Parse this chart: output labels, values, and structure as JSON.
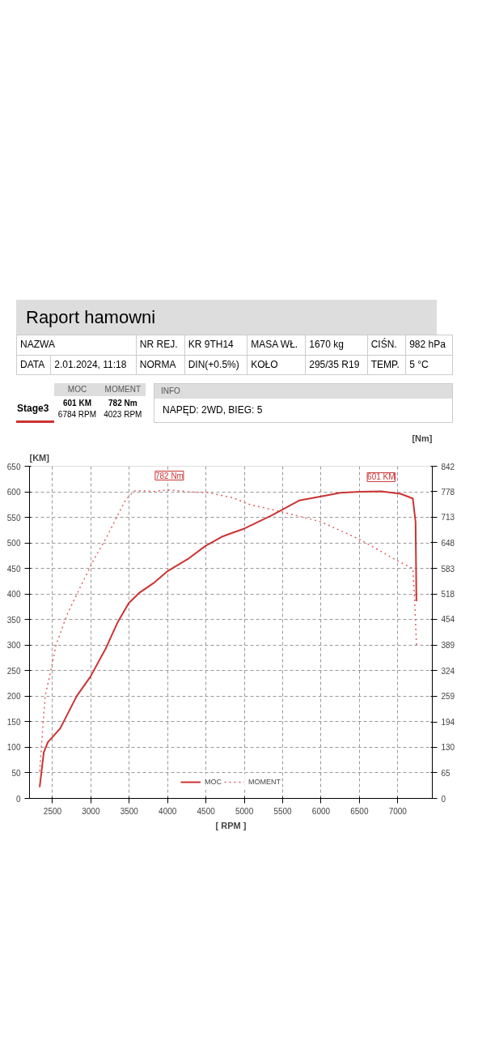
{
  "chart_data": {
    "type": "line",
    "title": "Raport hamowni",
    "xlabel": "[ RPM ]",
    "ylabel": "[KM]",
    "y2label": "[Nm]",
    "xlim": [
      2200,
      7450
    ],
    "xticks": [
      2500,
      3000,
      3500,
      4000,
      4500,
      5000,
      5500,
      6000,
      6500,
      7000
    ],
    "ylim": [
      0,
      650
    ],
    "yticks": [
      0,
      50,
      100,
      150,
      200,
      250,
      300,
      350,
      400,
      450,
      500,
      550,
      600,
      650
    ],
    "y2lim": [
      0,
      842
    ],
    "y2ticks": [
      0,
      65,
      130,
      194,
      259,
      324,
      389,
      454,
      518,
      583,
      648,
      713,
      778,
      842
    ],
    "grid": true,
    "legend": "bottom",
    "marker": "none",
    "series": [
      {
        "name": "MOC",
        "color": "#cc3333",
        "line_style": "solid",
        "x": [
          2332,
          2386,
          2439,
          2600,
          2814,
          2993,
          3189,
          3350,
          3493,
          3636,
          3814,
          3993,
          4279,
          4493,
          4707,
          4850,
          5000,
          5357,
          5714,
          6071,
          6250,
          6500,
          6784,
          7036,
          7196,
          7232,
          7243
        ],
        "values": [
          22,
          90,
          110,
          137,
          200,
          238,
          292,
          345,
          382,
          403,
          421,
          444,
          470,
          494,
          512,
          520,
          528,
          554,
          583,
          593,
          598,
          600,
          601,
          596,
          587,
          541,
          386
        ]
      },
      {
        "name": "MOMENT",
        "color": "#e06060",
        "line_style": "dotted",
        "axis": "y2",
        "x": [
          2332,
          2368,
          2404,
          2475,
          2546,
          2689,
          2850,
          3029,
          3207,
          3350,
          3457,
          3564,
          3671,
          3814,
          4023,
          4279,
          4529,
          4850,
          5071,
          5500,
          6000,
          6500,
          7000,
          7196,
          7221,
          7243
        ],
        "values": [
          68,
          164,
          260,
          321,
          389,
          466,
          531,
          602,
          663,
          718,
          758,
          779,
          780,
          778,
          782,
          777,
          775,
          762,
          745,
          726,
          701,
          657,
          602,
          583,
          500,
          389
        ]
      }
    ],
    "annotations": [
      {
        "text": "782 Nm",
        "x": 4023,
        "y": 604
      },
      {
        "text": "601 KM",
        "x": 6784,
        "y": 601
      },
      "NAZWA",
      "NR REJ.",
      "KR 9TH14",
      "MASA WŁ.",
      "1670 kg",
      "CIŚN.",
      "982 hPa",
      "DATA",
      "2.01.2024, 11:18",
      "NORMA",
      "DIN(+0.5%)",
      "KOŁO",
      "295/35 R19",
      "TEMP.",
      "5 °C",
      "MOC",
      "MOMENT",
      "Stage3",
      "601 KM",
      "782 Nm",
      "6784 RPM",
      "4023 RPM",
      "INFO",
      "NAPĘD: 2WD,  BIEG: 5"
    ]
  }
}
